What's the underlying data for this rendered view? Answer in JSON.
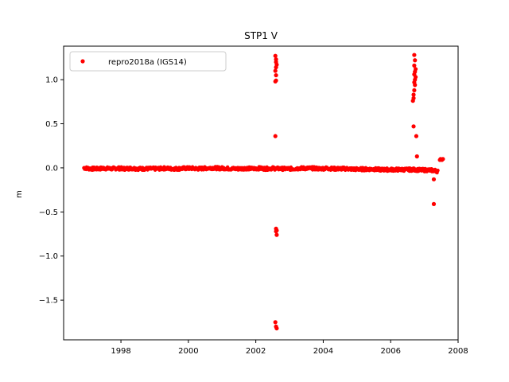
{
  "chart_data": {
    "type": "scatter",
    "title": "STP1 V",
    "xlabel": "",
    "ylabel": "m",
    "xlim": [
      1996.3,
      2008.0
    ],
    "ylim": [
      -1.95,
      1.38
    ],
    "xticks": [
      1998,
      2000,
      2002,
      2004,
      2006,
      2008
    ],
    "yticks": [
      -1.5,
      -1.0,
      -0.5,
      0.0,
      0.5,
      1.0
    ],
    "ytick_labels": [
      "−1.5",
      "−1.0",
      "−0.5",
      "0.0",
      "0.5",
      "1.0"
    ],
    "grid": false,
    "legend_position": "top-left",
    "series": [
      {
        "name": "repro2018a (IGS14)",
        "color": "#ff0000",
        "marker": "circle",
        "baseline": {
          "x_start": 1996.9,
          "x_end": 2007.4,
          "points": [
            [
              1996.9,
              0.0
            ],
            [
              1997.1,
              -0.01
            ],
            [
              1997.3,
              -0.01
            ],
            [
              1997.5,
              -0.005
            ],
            [
              1997.7,
              -0.01
            ],
            [
              1997.9,
              -0.005
            ],
            [
              1998.1,
              -0.01
            ],
            [
              1998.3,
              -0.005
            ],
            [
              1998.5,
              -0.01
            ],
            [
              1998.7,
              -0.01
            ],
            [
              1998.9,
              -0.01
            ],
            [
              1999.1,
              -0.01
            ],
            [
              1999.3,
              -0.005
            ],
            [
              1999.5,
              -0.01
            ],
            [
              1999.7,
              -0.01
            ],
            [
              1999.9,
              -0.005
            ],
            [
              2000.1,
              -0.005
            ],
            [
              2000.3,
              -0.01
            ],
            [
              2000.5,
              -0.005
            ],
            [
              2000.7,
              -0.0
            ],
            [
              2000.9,
              -0.005
            ],
            [
              2001.1,
              -0.005
            ],
            [
              2001.3,
              -0.01
            ],
            [
              2001.5,
              -0.01
            ],
            [
              2001.7,
              -0.005
            ],
            [
              2001.9,
              -0.01
            ],
            [
              2002.1,
              -0.005
            ],
            [
              2002.3,
              -0.01
            ],
            [
              2002.5,
              -0.005
            ],
            [
              2002.7,
              -0.01
            ],
            [
              2002.9,
              -0.01
            ],
            [
              2003.1,
              -0.01
            ],
            [
              2003.3,
              -0.005
            ],
            [
              2003.5,
              -0.005
            ],
            [
              2003.7,
              -0.005
            ],
            [
              2003.9,
              -0.01
            ],
            [
              2004.1,
              -0.005
            ],
            [
              2004.3,
              -0.01
            ],
            [
              2004.5,
              -0.01
            ],
            [
              2004.7,
              -0.01
            ],
            [
              2004.9,
              -0.015
            ],
            [
              2005.1,
              -0.015
            ],
            [
              2005.3,
              -0.015
            ],
            [
              2005.5,
              -0.015
            ],
            [
              2005.7,
              -0.02
            ],
            [
              2005.9,
              -0.02
            ],
            [
              2006.1,
              -0.02
            ],
            [
              2006.3,
              -0.02
            ],
            [
              2006.5,
              -0.02
            ],
            [
              2006.7,
              -0.02
            ],
            [
              2006.9,
              -0.025
            ],
            [
              2007.1,
              -0.025
            ],
            [
              2007.3,
              -0.03
            ],
            [
              2007.4,
              -0.04
            ]
          ]
        },
        "outliers": [
          [
            2002.58,
            1.27
          ],
          [
            2002.6,
            1.23
          ],
          [
            2002.6,
            1.2
          ],
          [
            2002.62,
            1.17
          ],
          [
            2002.6,
            1.14
          ],
          [
            2002.58,
            1.1
          ],
          [
            2002.6,
            1.05
          ],
          [
            2002.6,
            0.99
          ],
          [
            2002.58,
            0.98
          ],
          [
            2002.58,
            0.36
          ],
          [
            2002.6,
            -0.69
          ],
          [
            2002.62,
            -0.71
          ],
          [
            2002.6,
            -0.72
          ],
          [
            2002.62,
            -0.76
          ],
          [
            2002.58,
            -1.75
          ],
          [
            2002.6,
            -1.8
          ],
          [
            2002.62,
            -1.82
          ],
          [
            2006.7,
            1.28
          ],
          [
            2006.72,
            1.22
          ],
          [
            2006.7,
            1.16
          ],
          [
            2006.74,
            1.12
          ],
          [
            2006.72,
            1.09
          ],
          [
            2006.7,
            1.06
          ],
          [
            2006.74,
            1.03
          ],
          [
            2006.72,
            1.0
          ],
          [
            2006.7,
            0.97
          ],
          [
            2006.72,
            0.94
          ],
          [
            2006.7,
            0.88
          ],
          [
            2006.68,
            0.83
          ],
          [
            2006.68,
            0.79
          ],
          [
            2006.66,
            0.76
          ],
          [
            2006.68,
            0.47
          ],
          [
            2006.76,
            0.36
          ],
          [
            2006.78,
            0.13
          ],
          [
            2007.28,
            -0.13
          ],
          [
            2007.28,
            -0.41
          ],
          [
            2007.46,
            0.09
          ],
          [
            2007.48,
            0.1
          ],
          [
            2007.52,
            0.09
          ],
          [
            2007.55,
            0.1
          ]
        ]
      }
    ]
  }
}
